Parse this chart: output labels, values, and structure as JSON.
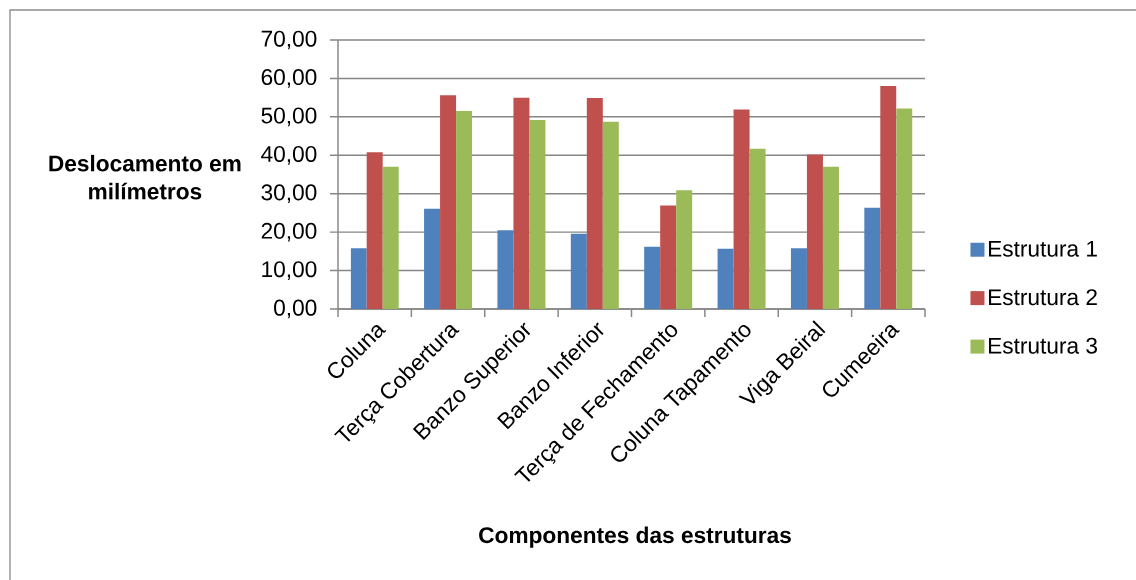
{
  "chart_data": {
    "type": "bar",
    "xlabel": "Componentes das estruturas",
    "ylabel": "Deslocamento em milímetros",
    "categories": [
      "Coluna",
      "Terça Cobertura",
      "Banzo Superior",
      "Banzo Inferior",
      "Terça de Fechamento",
      "Coluna Tapamento",
      "Viga Beiral",
      "Cumeeira"
    ],
    "series": [
      {
        "name": "Estrutura 1",
        "color": "#4f81bd",
        "values": [
          15.8,
          26.1,
          20.5,
          19.6,
          16.2,
          15.7,
          15.8,
          26.4
        ]
      },
      {
        "name": "Estrutura 2",
        "color": "#c0504d",
        "values": [
          40.8,
          55.6,
          55.0,
          54.9,
          26.9,
          51.9,
          40.2,
          58.0
        ]
      },
      {
        "name": "Estrutura 3",
        "color": "#9bbb59",
        "values": [
          37.0,
          51.5,
          49.2,
          48.7,
          30.9,
          41.7,
          37.0,
          52.2
        ]
      }
    ],
    "ylim": [
      0,
      70
    ],
    "yticks": [
      {
        "value": 0,
        "label": "0,00"
      },
      {
        "value": 10,
        "label": "10,00"
      },
      {
        "value": 20,
        "label": "20,00"
      },
      {
        "value": 30,
        "label": "30,00"
      },
      {
        "value": 40,
        "label": "40,00"
      },
      {
        "value": 50,
        "label": "50,00"
      },
      {
        "value": 60,
        "label": "60,00"
      },
      {
        "value": 70,
        "label": "70,00"
      }
    ],
    "grid": "y",
    "legend": "right"
  }
}
